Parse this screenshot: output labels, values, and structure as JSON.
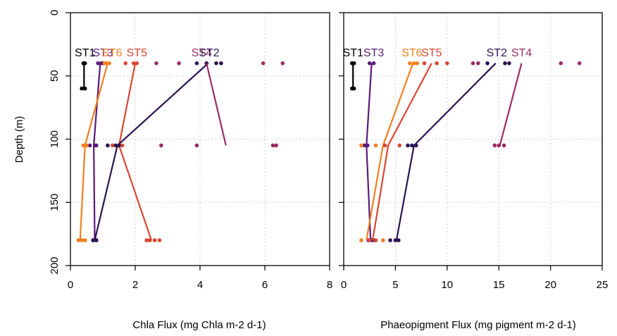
{
  "chart_data": [
    {
      "type": "line",
      "xlabel": "Chla Flux (mg Chla m-2 d-1)",
      "ylabel": "Depth (m)",
      "xlim": [
        0,
        8
      ],
      "ylim": [
        200,
        0
      ],
      "xticks": [
        0,
        2,
        4,
        6,
        8
      ],
      "yticks": [
        0,
        50,
        100,
        150,
        200
      ],
      "grid": true,
      "series": [
        {
          "name": "ST1",
          "color": "#000000",
          "mean_x": [
            0.42,
            0.42
          ],
          "mean_y": [
            40,
            60
          ],
          "points": [
            [
              0.4,
              40
            ],
            [
              0.45,
              40
            ],
            [
              0.35,
              60
            ],
            [
              0.45,
              60
            ]
          ]
        },
        {
          "name": "ST3",
          "color": "#5a1a7a",
          "mean_x": [
            0.92,
            0.72,
            0.75
          ],
          "mean_y": [
            40,
            105,
            180
          ],
          "points": [
            [
              0.85,
              40
            ],
            [
              0.95,
              40
            ],
            [
              1.0,
              40
            ],
            [
              0.6,
              105
            ],
            [
              0.75,
              105
            ],
            [
              0.8,
              105
            ],
            [
              0.7,
              180
            ],
            [
              0.8,
              180
            ]
          ]
        },
        {
          "name": "ST6",
          "color": "#f07f1e",
          "mean_x": [
            1.15,
            0.45,
            0.3
          ],
          "mean_y": [
            40,
            105,
            180
          ],
          "points": [
            [
              1.05,
              40
            ],
            [
              1.1,
              40
            ],
            [
              1.2,
              40
            ],
            [
              0.4,
              105
            ],
            [
              0.5,
              105
            ],
            [
              0.25,
              180
            ],
            [
              0.35,
              180
            ],
            [
              0.45,
              180
            ]
          ]
        },
        {
          "name": "ST5",
          "color": "#d94833",
          "mean_x": [
            2.0,
            1.5,
            2.5
          ],
          "mean_y": [
            40,
            105,
            180
          ],
          "points": [
            [
              1.7,
              40
            ],
            [
              1.95,
              40
            ],
            [
              2.05,
              40
            ],
            [
              1.3,
              105
            ],
            [
              1.5,
              105
            ],
            [
              1.6,
              105
            ],
            [
              2.35,
              180
            ],
            [
              2.45,
              180
            ],
            [
              2.6,
              180
            ],
            [
              2.75,
              180
            ]
          ]
        },
        {
          "name": "ST2",
          "color": "#2a1451",
          "mean_x": [
            4.25,
            1.45,
            0.75
          ],
          "mean_y": [
            40,
            105,
            180
          ],
          "points": [
            [
              3.9,
              40
            ],
            [
              4.2,
              40
            ],
            [
              4.5,
              40
            ],
            [
              4.65,
              40
            ],
            [
              1.15,
              105
            ],
            [
              1.4,
              105
            ],
            [
              1.5,
              105
            ],
            [
              0.7,
              180
            ],
            [
              0.8,
              180
            ]
          ]
        },
        {
          "name": "ST4",
          "color": "#9b2c63",
          "mean_x": [
            4.2,
            4.8
          ],
          "mean_y": [
            40,
            105
          ],
          "points": [
            [
              2.65,
              40
            ],
            [
              3.35,
              40
            ],
            [
              5.95,
              40
            ],
            [
              6.55,
              40
            ],
            [
              2.8,
              105
            ],
            [
              3.9,
              105
            ],
            [
              6.25,
              105
            ],
            [
              6.35,
              105
            ]
          ]
        }
      ],
      "labels": [
        {
          "text": "ST1",
          "x": 0.45,
          "color": "#000000"
        },
        {
          "text": "ST3",
          "x": 1.0,
          "color": "#5a1a7a"
        },
        {
          "text": "ST6",
          "x": 1.28,
          "color": "#f07f1e"
        },
        {
          "text": "ST5",
          "x": 2.05,
          "color": "#d94833"
        },
        {
          "text": "ST4",
          "x": 4.05,
          "color": "#9b2c63"
        },
        {
          "text": "ST2",
          "x": 4.28,
          "color": "#2a1451"
        }
      ]
    },
    {
      "type": "line",
      "xlabel": "Phaeopigment Flux (mg pigment m-2 d-1)",
      "ylabel": "",
      "xlim": [
        0,
        25
      ],
      "ylim": [
        200,
        0
      ],
      "xticks": [
        0,
        5,
        10,
        15,
        20,
        25
      ],
      "yticks": [
        0,
        50,
        100,
        150,
        200
      ],
      "grid": true,
      "series": [
        {
          "name": "ST1",
          "color": "#000000",
          "mean_x": [
            0.9,
            0.9
          ],
          "mean_y": [
            40,
            60
          ],
          "points": [
            [
              0.8,
              40
            ],
            [
              1.0,
              40
            ],
            [
              0.8,
              60
            ],
            [
              1.0,
              60
            ]
          ]
        },
        {
          "name": "ST3",
          "color": "#5a1a7a",
          "mean_x": [
            2.7,
            2.2,
            2.6
          ],
          "mean_y": [
            40,
            105,
            180
          ],
          "points": [
            [
              2.5,
              40
            ],
            [
              2.9,
              40
            ],
            [
              2.0,
              105
            ],
            [
              2.3,
              105
            ],
            [
              2.4,
              180
            ],
            [
              2.7,
              180
            ],
            [
              3.0,
              180
            ]
          ]
        },
        {
          "name": "ST6",
          "color": "#f07f1e",
          "mean_x": [
            6.7,
            3.8,
            2.2
          ],
          "mean_y": [
            40,
            105,
            180
          ],
          "points": [
            [
              6.4,
              40
            ],
            [
              6.8,
              40
            ],
            [
              7.1,
              40
            ],
            [
              1.7,
              105
            ],
            [
              3.1,
              105
            ],
            [
              1.7,
              180
            ],
            [
              3.8,
              180
            ]
          ]
        },
        {
          "name": "ST5",
          "color": "#d94833",
          "mean_x": [
            8.5,
            4.3,
            2.8
          ],
          "mean_y": [
            40,
            105,
            180
          ],
          "points": [
            [
              7.8,
              40
            ],
            [
              9.0,
              40
            ],
            [
              10.0,
              40
            ],
            [
              4.0,
              105
            ],
            [
              5.4,
              105
            ],
            [
              2.5,
              180
            ],
            [
              3.1,
              180
            ]
          ]
        },
        {
          "name": "ST2",
          "color": "#2a1451",
          "mean_x": [
            14.7,
            6.8,
            5.1
          ],
          "mean_y": [
            40,
            105,
            180
          ],
          "points": [
            [
              13.9,
              40
            ],
            [
              15.6,
              40
            ],
            [
              16.0,
              40
            ],
            [
              6.2,
              105
            ],
            [
              6.6,
              105
            ],
            [
              7.0,
              105
            ],
            [
              4.5,
              180
            ],
            [
              5.0,
              180
            ],
            [
              5.3,
              180
            ]
          ]
        },
        {
          "name": "ST4",
          "color": "#9b2c63",
          "mean_x": [
            17.2,
            15.1
          ],
          "mean_y": [
            40,
            105
          ],
          "points": [
            [
              12.5,
              40
            ],
            [
              13.0,
              40
            ],
            [
              21.0,
              40
            ],
            [
              22.8,
              40
            ],
            [
              14.6,
              105
            ],
            [
              15.0,
              105
            ],
            [
              15.5,
              105
            ]
          ]
        }
      ],
      "labels": [
        {
          "text": "ST1",
          "x": 0.9,
          "color": "#000000"
        },
        {
          "text": "ST3",
          "x": 2.9,
          "color": "#5a1a7a"
        },
        {
          "text": "ST6",
          "x": 6.6,
          "color": "#f07f1e"
        },
        {
          "text": "ST5",
          "x": 8.5,
          "color": "#d94833"
        },
        {
          "text": "ST2",
          "x": 14.8,
          "color": "#2a1451"
        },
        {
          "text": "ST4",
          "x": 17.2,
          "color": "#9b2c63"
        }
      ]
    }
  ]
}
